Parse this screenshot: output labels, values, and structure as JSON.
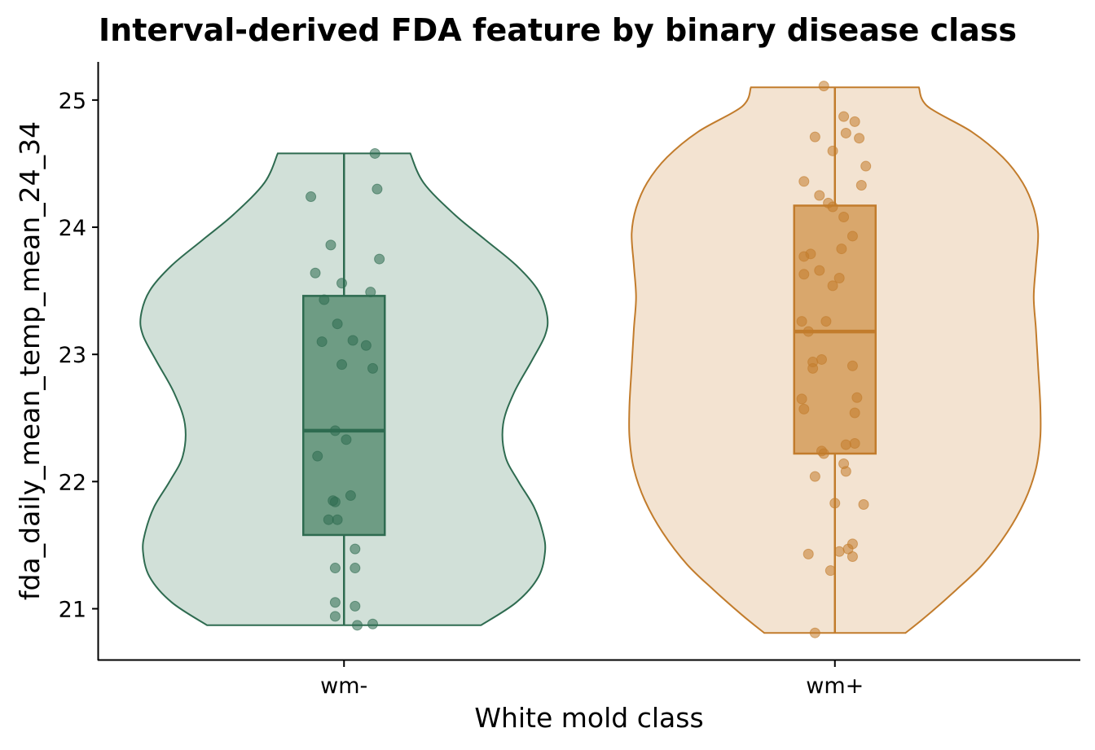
{
  "chart_data": {
    "type": "violin",
    "title": "Interval-derived FDA feature by binary disease class",
    "xlabel": "White mold class",
    "ylabel": "fda_daily_mean_temp_mean_24_34",
    "categories": [
      "wm-",
      "wm+"
    ],
    "ylim": [
      20.6,
      25.3
    ],
    "yticks": [
      21,
      22,
      23,
      24,
      25
    ],
    "grid": false,
    "legend": "none",
    "series": [
      {
        "category": "wm-",
        "fill_color": "#d1e0d8",
        "line_color": "#2e6b50",
        "box_fill": "#6e9c84",
        "min": 20.87,
        "q1": 21.58,
        "median": 22.4,
        "q3": 23.46,
        "max": 24.58,
        "density": [
          [
            20.87,
            0.62
          ],
          [
            21.05,
            0.78
          ],
          [
            21.25,
            0.88
          ],
          [
            21.45,
            0.91
          ],
          [
            21.6,
            0.9
          ],
          [
            21.8,
            0.86
          ],
          [
            22.0,
            0.79
          ],
          [
            22.2,
            0.73
          ],
          [
            22.45,
            0.72
          ],
          [
            22.7,
            0.77
          ],
          [
            22.95,
            0.85
          ],
          [
            23.15,
            0.91
          ],
          [
            23.3,
            0.92
          ],
          [
            23.5,
            0.88
          ],
          [
            23.7,
            0.78
          ],
          [
            23.9,
            0.64
          ],
          [
            24.1,
            0.5
          ],
          [
            24.35,
            0.36
          ],
          [
            24.58,
            0.3
          ]
        ],
        "points": [
          [
            24.58,
            0.14
          ],
          [
            24.24,
            -0.15
          ],
          [
            24.3,
            0.15
          ],
          [
            23.86,
            -0.06
          ],
          [
            23.75,
            0.16
          ],
          [
            23.64,
            -0.13
          ],
          [
            23.56,
            -0.01
          ],
          [
            23.49,
            0.12
          ],
          [
            23.43,
            -0.09
          ],
          [
            23.24,
            -0.03
          ],
          [
            23.11,
            0.04
          ],
          [
            23.1,
            -0.1
          ],
          [
            23.07,
            0.1
          ],
          [
            22.92,
            -0.01
          ],
          [
            22.89,
            0.13
          ],
          [
            22.4,
            -0.04
          ],
          [
            22.33,
            0.01
          ],
          [
            22.2,
            -0.12
          ],
          [
            21.89,
            0.03
          ],
          [
            21.85,
            -0.05
          ],
          [
            21.84,
            -0.04
          ],
          [
            21.7,
            -0.07
          ],
          [
            21.7,
            -0.03
          ],
          [
            21.47,
            0.05
          ],
          [
            21.32,
            -0.04
          ],
          [
            21.32,
            0.05
          ],
          [
            21.05,
            -0.04
          ],
          [
            21.02,
            0.05
          ],
          [
            20.94,
            -0.04
          ],
          [
            20.88,
            0.13
          ],
          [
            20.87,
            0.06
          ]
        ]
      },
      {
        "category": "wm+",
        "fill_color": "#f3e3d1",
        "line_color": "#c27c2c",
        "box_fill": "#d9a76c",
        "min": 20.81,
        "q1": 22.22,
        "median": 23.18,
        "q3": 24.17,
        "max": 25.1,
        "density": [
          [
            20.81,
            0.32
          ],
          [
            20.95,
            0.42
          ],
          [
            21.15,
            0.55
          ],
          [
            21.35,
            0.67
          ],
          [
            21.6,
            0.78
          ],
          [
            21.85,
            0.86
          ],
          [
            22.1,
            0.91
          ],
          [
            22.35,
            0.93
          ],
          [
            22.6,
            0.93
          ],
          [
            22.9,
            0.92
          ],
          [
            23.2,
            0.91
          ],
          [
            23.45,
            0.9
          ],
          [
            23.7,
            0.91
          ],
          [
            23.95,
            0.92
          ],
          [
            24.15,
            0.9
          ],
          [
            24.35,
            0.85
          ],
          [
            24.55,
            0.76
          ],
          [
            24.75,
            0.62
          ],
          [
            24.95,
            0.42
          ],
          [
            25.1,
            0.38
          ]
        ],
        "points": [
          [
            25.11,
            -0.05
          ],
          [
            24.87,
            0.04
          ],
          [
            24.83,
            0.09
          ],
          [
            24.74,
            0.05
          ],
          [
            24.71,
            -0.09
          ],
          [
            24.7,
            0.11
          ],
          [
            24.6,
            -0.01
          ],
          [
            24.48,
            0.14
          ],
          [
            24.36,
            -0.14
          ],
          [
            24.33,
            0.12
          ],
          [
            24.25,
            -0.07
          ],
          [
            24.19,
            -0.03
          ],
          [
            24.16,
            -0.01
          ],
          [
            24.08,
            0.04
          ],
          [
            23.93,
            0.08
          ],
          [
            23.83,
            0.03
          ],
          [
            23.79,
            -0.11
          ],
          [
            23.77,
            -0.14
          ],
          [
            23.66,
            -0.07
          ],
          [
            23.63,
            -0.14
          ],
          [
            23.6,
            0.02
          ],
          [
            23.54,
            -0.01
          ],
          [
            23.26,
            -0.15
          ],
          [
            23.26,
            -0.04
          ],
          [
            23.18,
            -0.12
          ],
          [
            22.96,
            -0.06
          ],
          [
            22.94,
            -0.1
          ],
          [
            22.91,
            0.08
          ],
          [
            22.89,
            -0.1
          ],
          [
            22.66,
            0.1
          ],
          [
            22.65,
            -0.15
          ],
          [
            22.57,
            -0.14
          ],
          [
            22.54,
            0.09
          ],
          [
            22.3,
            0.09
          ],
          [
            22.29,
            0.05
          ],
          [
            22.24,
            -0.06
          ],
          [
            22.22,
            -0.05
          ],
          [
            22.14,
            0.04
          ],
          [
            22.08,
            0.05
          ],
          [
            22.04,
            -0.09
          ],
          [
            21.83,
            0.0
          ],
          [
            21.82,
            0.13
          ],
          [
            21.51,
            0.08
          ],
          [
            21.47,
            0.06
          ],
          [
            21.45,
            0.02
          ],
          [
            21.43,
            -0.12
          ],
          [
            21.41,
            0.08
          ],
          [
            21.3,
            -0.02
          ],
          [
            20.81,
            -0.09
          ]
        ]
      }
    ]
  }
}
